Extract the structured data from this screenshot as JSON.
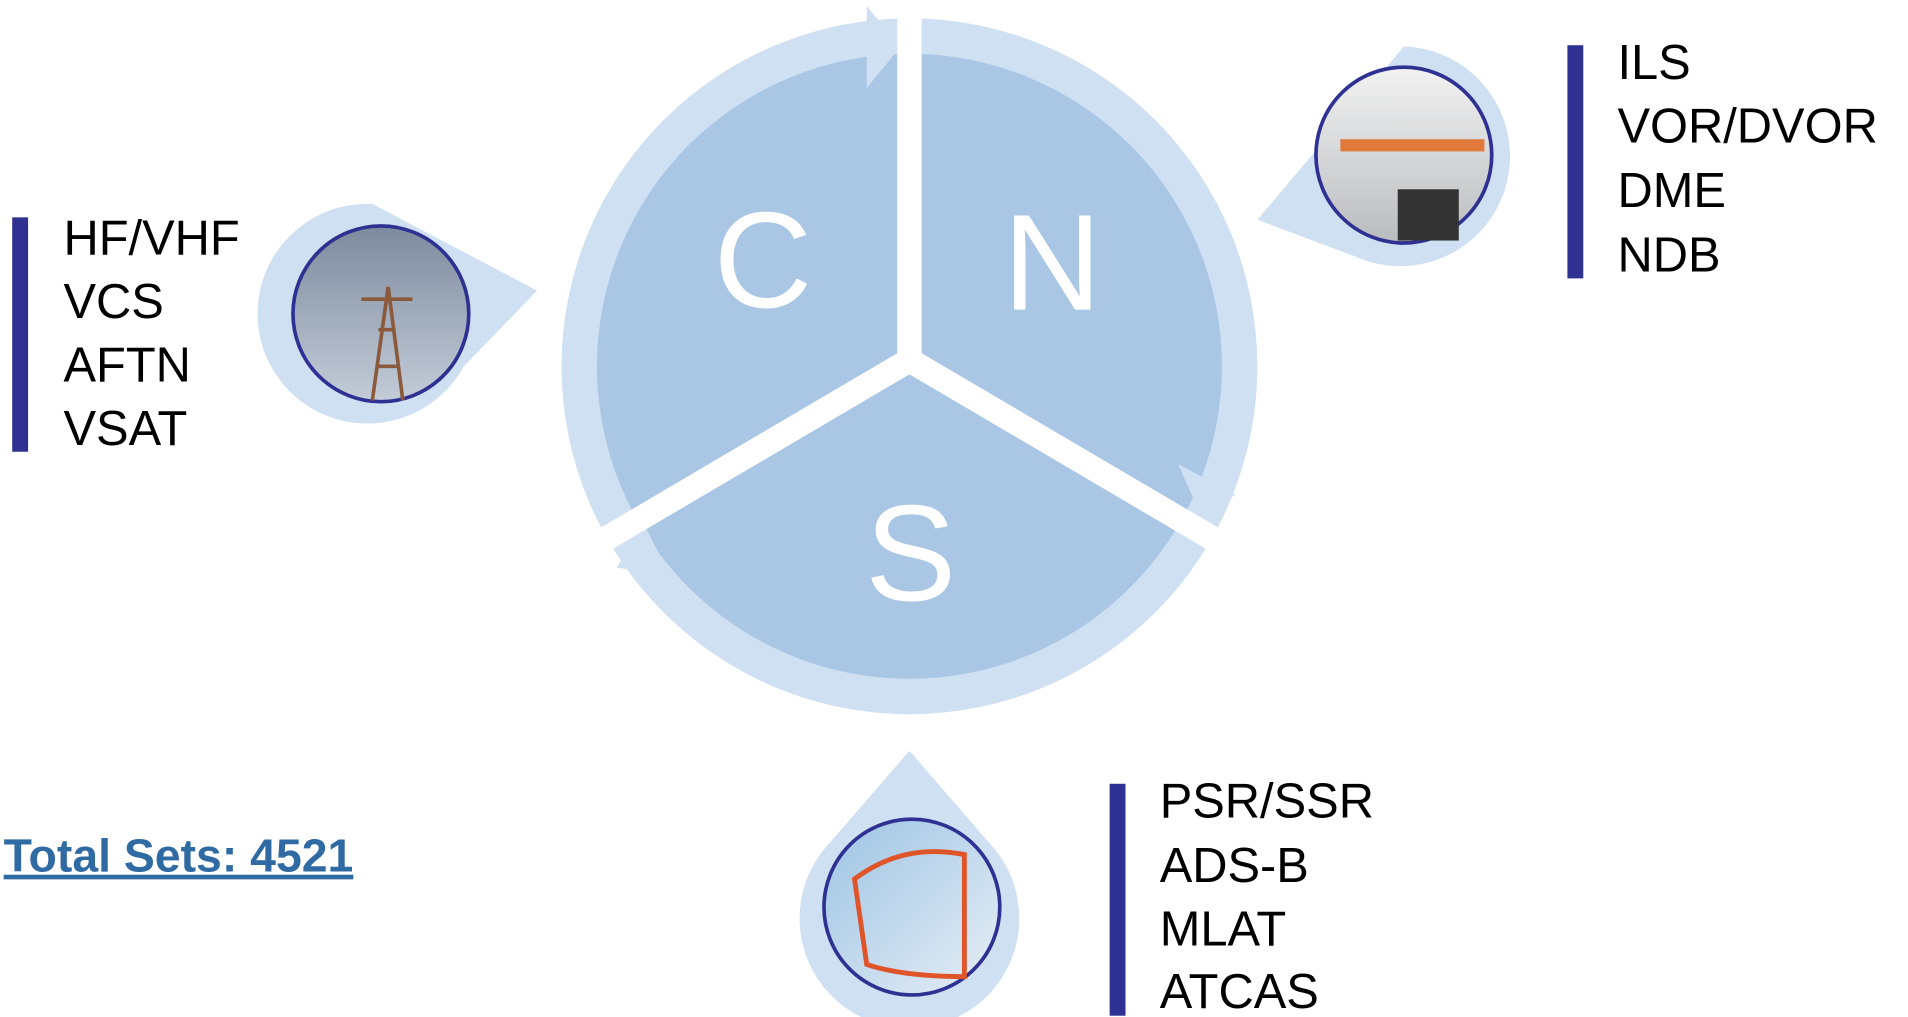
{
  "diagram": {
    "segments": [
      {
        "letter": "C",
        "items": [
          "HF/VHF",
          "VCS",
          "AFTN",
          "VSAT"
        ]
      },
      {
        "letter": "N",
        "items": [
          "ILS",
          "VOR/DVOR",
          "DME",
          "NDB"
        ]
      },
      {
        "letter": "S",
        "items": [
          "PSR/SSR",
          "ADS-B",
          "MLAT",
          "ATCAS"
        ]
      }
    ]
  },
  "total": "Total Sets: 4521"
}
